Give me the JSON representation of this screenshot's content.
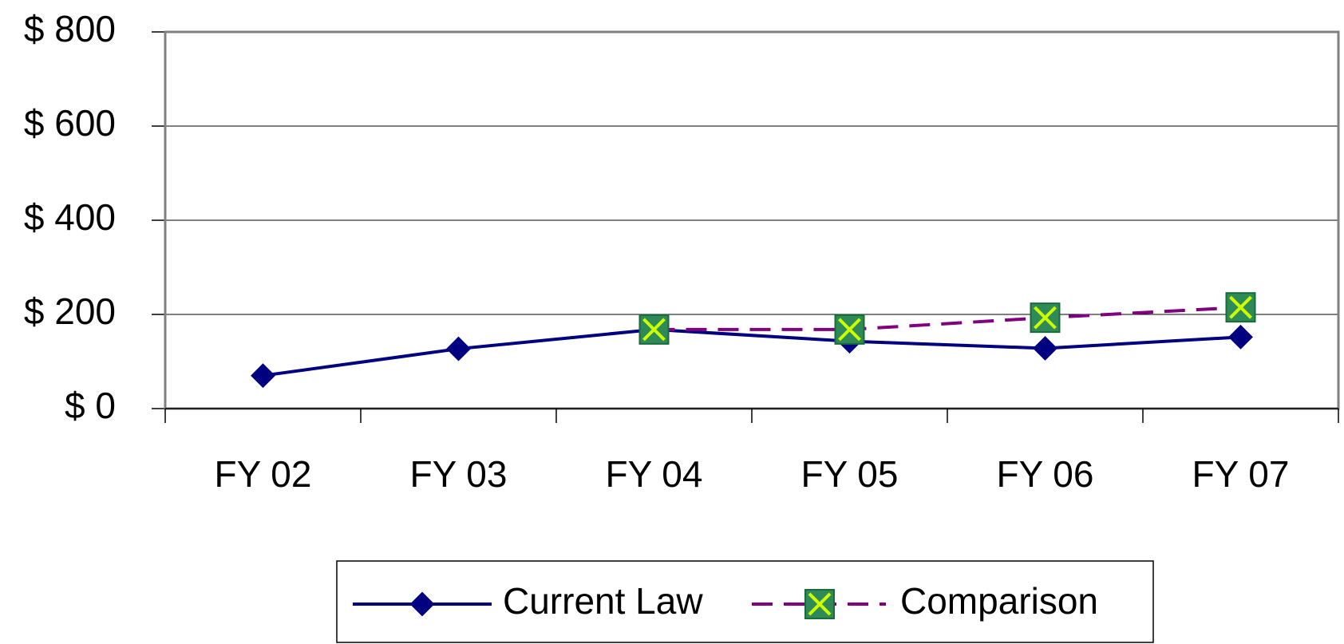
{
  "chart_data": {
    "type": "line",
    "categories": [
      "FY 02",
      "FY 03",
      "FY 04",
      "FY 05",
      "FY 06",
      "FY 07"
    ],
    "series": [
      {
        "name": "Current Law",
        "color": "#000080",
        "values": [
          70,
          127,
          168,
          143,
          128,
          152
        ]
      },
      {
        "name": "Comparison",
        "color": "#800080",
        "values": [
          null,
          null,
          168,
          168,
          193,
          215
        ]
      }
    ],
    "ylim": [
      0,
      800
    ],
    "yticks": [
      {
        "value": 0,
        "label": "$ 0"
      },
      {
        "value": 200,
        "label": "$ 200"
      },
      {
        "value": 400,
        "label": "$ 400"
      },
      {
        "value": 600,
        "label": "$ 600"
      },
      {
        "value": 800,
        "label": "$ 800"
      }
    ],
    "grid": true,
    "legend": "bottom"
  }
}
